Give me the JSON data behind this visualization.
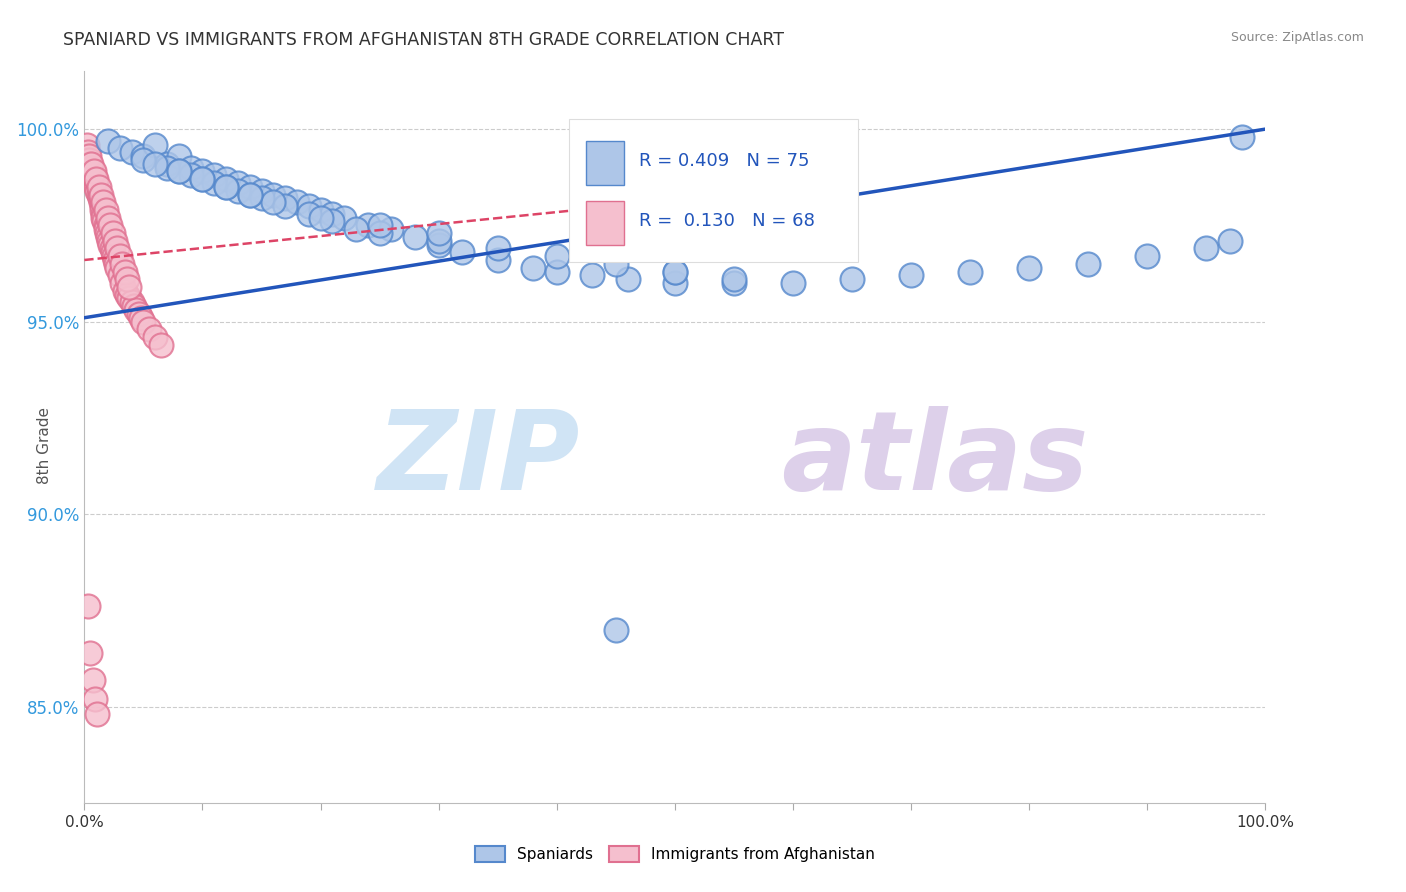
{
  "title": "SPANIARD VS IMMIGRANTS FROM AFGHANISTAN 8TH GRADE CORRELATION CHART",
  "source": "Source: ZipAtlas.com",
  "ylabel": "8th Grade",
  "xmin": 0.0,
  "xmax": 1.0,
  "ymin": 0.825,
  "ymax": 1.015,
  "yticks": [
    0.85,
    0.9,
    0.95,
    1.0
  ],
  "ytick_labels": [
    "85.0%",
    "90.0%",
    "95.0%",
    "100.0%"
  ],
  "blue_R": 0.409,
  "blue_N": 75,
  "pink_R": 0.13,
  "pink_N": 68,
  "blue_color": "#aec6e8",
  "blue_edge_color": "#5588cc",
  "pink_color": "#f5bfce",
  "pink_edge_color": "#e07090",
  "blue_line_color": "#2255bb",
  "pink_line_color": "#dd4466",
  "watermark_zip_color": "#d0e4f5",
  "watermark_atlas_color": "#ddd0ea",
  "legend_blue_text": "R = 0.409   N = 75",
  "legend_pink_text": "R =  0.130   N = 68",
  "blue_scatter_x": [
    0.02,
    0.03,
    0.04,
    0.05,
    0.06,
    0.07,
    0.08,
    0.09,
    0.1,
    0.11,
    0.12,
    0.13,
    0.14,
    0.15,
    0.16,
    0.17,
    0.18,
    0.19,
    0.2,
    0.21,
    0.22,
    0.24,
    0.26,
    0.28,
    0.3,
    0.32,
    0.35,
    0.38,
    0.4,
    0.43,
    0.46,
    0.5,
    0.55,
    0.6,
    0.65,
    0.7,
    0.75,
    0.8,
    0.85,
    0.9,
    0.95,
    0.97,
    0.98,
    0.05,
    0.07,
    0.09,
    0.11,
    0.13,
    0.15,
    0.17,
    0.19,
    0.21,
    0.23,
    0.08,
    0.1,
    0.12,
    0.14,
    0.16,
    0.25,
    0.3,
    0.35,
    0.4,
    0.45,
    0.5,
    0.55,
    0.06,
    0.08,
    0.1,
    0.12,
    0.14,
    0.2,
    0.25,
    0.3,
    0.45,
    0.5
  ],
  "blue_scatter_y": [
    0.997,
    0.995,
    0.994,
    0.993,
    0.996,
    0.991,
    0.993,
    0.99,
    0.989,
    0.988,
    0.987,
    0.986,
    0.985,
    0.984,
    0.983,
    0.982,
    0.981,
    0.98,
    0.979,
    0.978,
    0.977,
    0.975,
    0.974,
    0.972,
    0.97,
    0.968,
    0.966,
    0.964,
    0.963,
    0.962,
    0.961,
    0.96,
    0.96,
    0.96,
    0.961,
    0.962,
    0.963,
    0.964,
    0.965,
    0.967,
    0.969,
    0.971,
    0.998,
    0.992,
    0.99,
    0.988,
    0.986,
    0.984,
    0.982,
    0.98,
    0.978,
    0.976,
    0.974,
    0.989,
    0.987,
    0.985,
    0.983,
    0.981,
    0.973,
    0.971,
    0.969,
    0.967,
    0.965,
    0.963,
    0.961,
    0.991,
    0.989,
    0.987,
    0.985,
    0.983,
    0.977,
    0.975,
    0.973,
    0.87,
    0.963
  ],
  "pink_scatter_x": [
    0.002,
    0.003,
    0.004,
    0.005,
    0.006,
    0.007,
    0.008,
    0.009,
    0.01,
    0.01,
    0.011,
    0.012,
    0.013,
    0.014,
    0.015,
    0.015,
    0.016,
    0.016,
    0.017,
    0.018,
    0.018,
    0.019,
    0.02,
    0.021,
    0.022,
    0.023,
    0.024,
    0.025,
    0.026,
    0.027,
    0.028,
    0.03,
    0.032,
    0.034,
    0.036,
    0.038,
    0.04,
    0.042,
    0.044,
    0.046,
    0.048,
    0.05,
    0.055,
    0.06,
    0.065,
    0.004,
    0.006,
    0.008,
    0.01,
    0.012,
    0.014,
    0.016,
    0.018,
    0.02,
    0.022,
    0.024,
    0.026,
    0.028,
    0.03,
    0.032,
    0.034,
    0.036,
    0.038,
    0.003,
    0.005,
    0.007,
    0.009,
    0.011
  ],
  "pink_scatter_y": [
    0.996,
    0.994,
    0.992,
    0.991,
    0.99,
    0.989,
    0.988,
    0.987,
    0.986,
    0.985,
    0.984,
    0.983,
    0.982,
    0.981,
    0.98,
    0.979,
    0.978,
    0.977,
    0.976,
    0.975,
    0.974,
    0.973,
    0.972,
    0.971,
    0.97,
    0.969,
    0.968,
    0.967,
    0.966,
    0.965,
    0.964,
    0.962,
    0.96,
    0.958,
    0.957,
    0.956,
    0.955,
    0.954,
    0.953,
    0.952,
    0.951,
    0.95,
    0.948,
    0.946,
    0.944,
    0.993,
    0.991,
    0.989,
    0.987,
    0.985,
    0.983,
    0.981,
    0.979,
    0.977,
    0.975,
    0.973,
    0.971,
    0.969,
    0.967,
    0.965,
    0.963,
    0.961,
    0.959,
    0.876,
    0.864,
    0.857,
    0.852,
    0.848
  ]
}
